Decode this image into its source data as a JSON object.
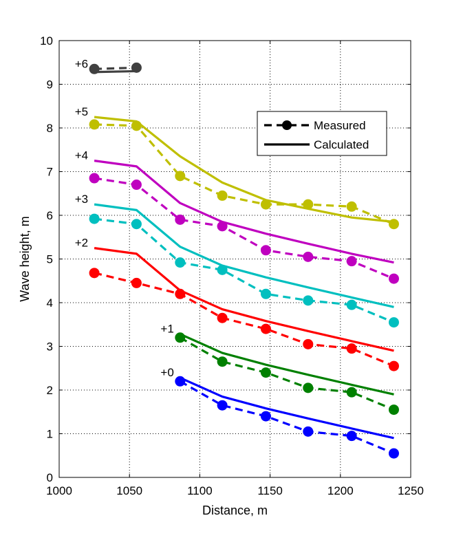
{
  "chart_data": {
    "type": "line",
    "xlabel": "Distance, m",
    "ylabel": "Wave height, m",
    "xlim": [
      1000,
      1250
    ],
    "ylim": [
      0,
      10
    ],
    "xticks": [
      1000,
      1050,
      1100,
      1150,
      1200,
      1250
    ],
    "yticks": [
      0,
      1,
      2,
      3,
      4,
      5,
      6,
      7,
      8,
      9,
      10
    ],
    "xtick_labels": [
      "1000",
      "1050",
      "1100",
      "1150",
      "1200",
      "1250"
    ],
    "ytick_labels": [
      "0",
      "1",
      "2",
      "3",
      "4",
      "5",
      "6",
      "7",
      "8",
      "9",
      "10"
    ],
    "grid": true,
    "legend": {
      "position": "top-right",
      "entries": [
        {
          "label": "Measured",
          "style": "dashed-markers"
        },
        {
          "label": "Calculated",
          "style": "solid"
        }
      ]
    },
    "series": [
      {
        "offset_label": "+0",
        "color": "#0000ff",
        "measured": {
          "x": [
            1086,
            1116,
            1147,
            1177,
            1208,
            1238
          ],
          "y": [
            2.2,
            1.65,
            1.4,
            1.05,
            0.95,
            0.55
          ]
        },
        "calculated": {
          "x": [
            1086,
            1116,
            1147,
            1177,
            1208,
            1238
          ],
          "y": [
            2.28,
            1.85,
            1.58,
            1.35,
            1.12,
            0.9
          ]
        }
      },
      {
        "offset_label": "+1",
        "color": "#008000",
        "measured": {
          "x": [
            1086,
            1116,
            1147,
            1177,
            1208,
            1238
          ],
          "y": [
            3.2,
            2.65,
            2.4,
            2.05,
            1.95,
            1.55
          ]
        },
        "calculated": {
          "x": [
            1086,
            1116,
            1147,
            1177,
            1208,
            1238
          ],
          "y": [
            3.28,
            2.85,
            2.58,
            2.35,
            2.12,
            1.9
          ]
        }
      },
      {
        "offset_label": "+2",
        "color": "#ff0000",
        "measured": {
          "x": [
            1025,
            1055,
            1086,
            1116,
            1147,
            1177,
            1208,
            1238
          ],
          "y": [
            4.68,
            4.45,
            4.2,
            3.65,
            3.4,
            3.05,
            2.95,
            2.55
          ]
        },
        "calculated": {
          "x": [
            1025,
            1055,
            1086,
            1116,
            1147,
            1177,
            1208,
            1238
          ],
          "y": [
            5.25,
            5.12,
            4.28,
            3.85,
            3.58,
            3.35,
            3.12,
            2.9
          ]
        }
      },
      {
        "offset_label": "+3",
        "color": "#00bfbf",
        "measured": {
          "x": [
            1025,
            1055,
            1086,
            1116,
            1147,
            1177,
            1208,
            1238
          ],
          "y": [
            5.92,
            5.8,
            4.92,
            4.75,
            4.2,
            4.05,
            3.95,
            3.55
          ]
        },
        "calculated": {
          "x": [
            1025,
            1055,
            1086,
            1116,
            1147,
            1177,
            1208,
            1238
          ],
          "y": [
            6.25,
            6.12,
            5.28,
            4.85,
            4.58,
            4.35,
            4.12,
            3.9
          ]
        }
      },
      {
        "offset_label": "+4",
        "color": "#bf00bf",
        "measured": {
          "x": [
            1025,
            1055,
            1086,
            1116,
            1147,
            1177,
            1208,
            1238
          ],
          "y": [
            6.85,
            6.7,
            5.9,
            5.75,
            5.2,
            5.05,
            4.95,
            4.55
          ]
        },
        "calculated": {
          "x": [
            1025,
            1055,
            1086,
            1116,
            1147,
            1177,
            1208,
            1238
          ],
          "y": [
            7.25,
            7.12,
            6.28,
            5.85,
            5.58,
            5.35,
            5.12,
            4.92
          ]
        }
      },
      {
        "offset_label": "+5",
        "color": "#bfbf00",
        "measured": {
          "x": [
            1025,
            1055,
            1086,
            1116,
            1147,
            1177,
            1208,
            1238
          ],
          "y": [
            8.08,
            8.05,
            6.9,
            6.45,
            6.25,
            6.25,
            6.2,
            5.8
          ]
        },
        "calculated": {
          "x": [
            1025,
            1055,
            1086,
            1116,
            1147,
            1177,
            1208,
            1238
          ],
          "y": [
            8.25,
            8.15,
            7.35,
            6.75,
            6.35,
            6.15,
            5.95,
            5.85
          ]
        }
      },
      {
        "offset_label": "+6",
        "color": "#404040",
        "measured": {
          "x": [
            1025,
            1055
          ],
          "y": [
            9.35,
            9.38
          ]
        },
        "calculated": {
          "x": [
            1025,
            1055
          ],
          "y": [
            9.28,
            9.3
          ]
        }
      }
    ]
  }
}
